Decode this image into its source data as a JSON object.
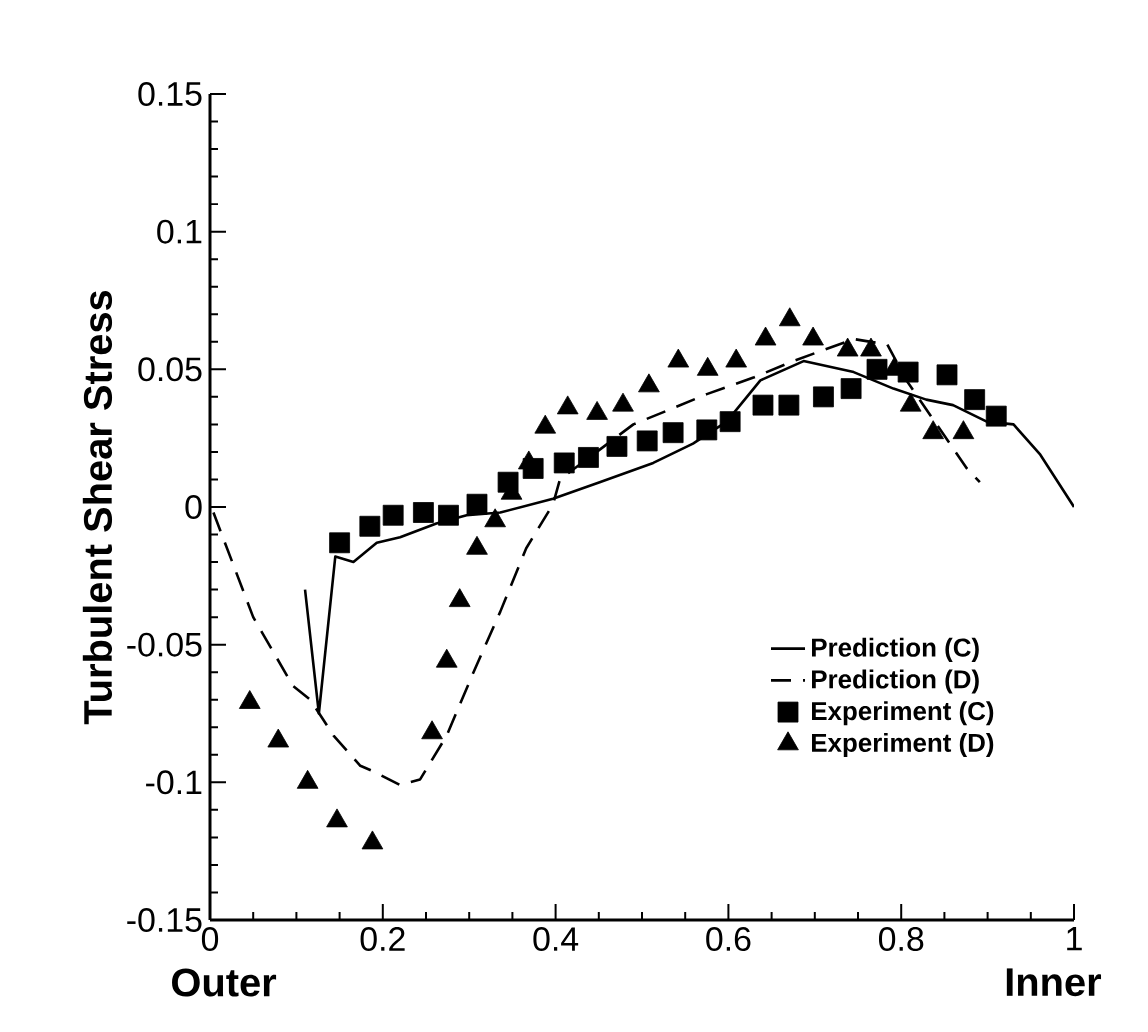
{
  "chart_data": {
    "type": "line",
    "ylabel": "Turbulent Shear Stress",
    "annotations": [
      "Outer",
      "Inner"
    ],
    "xlim": [
      0,
      1
    ],
    "xticks": [
      0,
      0.2,
      0.4,
      0.6,
      0.8,
      1
    ],
    "ylim": [
      -0.15,
      0.15
    ],
    "yticks": [
      -0.15,
      -0.1,
      -0.05,
      0,
      0.05,
      0.1,
      0.15
    ],
    "grid": false,
    "legend": "bottom right",
    "series": [
      {
        "name": "Prediction (C)",
        "line_style": "solid",
        "color": "#000000",
        "x": [
          0.11,
          0.126,
          0.145,
          0.166,
          0.193,
          0.22,
          0.262,
          0.297,
          0.336,
          0.397,
          0.451,
          0.513,
          0.559,
          0.598,
          0.637,
          0.687,
          0.745,
          0.791,
          0.829,
          0.86,
          0.899,
          0.93,
          0.961,
          1.0
        ],
        "values": [
          -0.03,
          -0.075,
          -0.018,
          -0.02,
          -0.013,
          -0.011,
          -0.006,
          -0.003,
          -0.002,
          0.003,
          0.009,
          0.016,
          0.023,
          0.031,
          0.046,
          0.053,
          0.049,
          0.043,
          0.039,
          0.037,
          0.031,
          0.03,
          0.019,
          0.0
        ]
      },
      {
        "name": "Prediction (D)",
        "line_style": "dashed",
        "color": "#000000",
        "x": [
          0.004,
          0.05,
          0.096,
          0.116,
          0.143,
          0.174,
          0.189,
          0.22,
          0.243,
          0.274,
          0.305,
          0.336,
          0.366,
          0.397,
          0.405,
          0.49,
          0.529,
          0.575,
          0.629,
          0.675,
          0.745,
          0.784,
          0.806,
          0.876,
          0.891
        ],
        "values": [
          -0.002,
          -0.04,
          -0.065,
          -0.07,
          -0.083,
          -0.094,
          -0.096,
          -0.101,
          -0.099,
          -0.083,
          -0.06,
          -0.038,
          -0.015,
          0.001,
          0.01,
          0.03,
          0.035,
          0.041,
          0.047,
          0.053,
          0.061,
          0.059,
          0.046,
          0.014,
          0.009
        ]
      },
      {
        "name": "Experiment (C)",
        "type": "scatter",
        "marker": "square",
        "color": "#000000",
        "x": [
          0.15,
          0.185,
          0.212,
          0.247,
          0.276,
          0.309,
          0.345,
          0.374,
          0.41,
          0.438,
          0.471,
          0.506,
          0.536,
          0.575,
          0.602,
          0.64,
          0.67,
          0.71,
          0.742,
          0.772,
          0.808,
          0.853,
          0.885,
          0.91
        ],
        "values": [
          -0.013,
          -0.007,
          -0.003,
          -0.002,
          -0.003,
          0.001,
          0.009,
          0.014,
          0.016,
          0.018,
          0.022,
          0.024,
          0.027,
          0.028,
          0.031,
          0.037,
          0.037,
          0.04,
          0.043,
          0.05,
          0.049,
          0.048,
          0.039,
          0.033
        ]
      },
      {
        "name": "Experiment (D)",
        "type": "scatter",
        "marker": "triangle",
        "color": "#000000",
        "x": [
          0.046,
          0.079,
          0.113,
          0.147,
          0.188,
          0.257,
          0.274,
          0.289,
          0.309,
          0.33,
          0.349,
          0.369,
          0.388,
          0.414,
          0.448,
          0.478,
          0.508,
          0.542,
          0.576,
          0.609,
          0.643,
          0.671,
          0.698,
          0.738,
          0.765,
          0.792,
          0.811,
          0.837,
          0.872
        ],
        "values": [
          -0.071,
          -0.085,
          -0.1,
          -0.114,
          -0.122,
          -0.082,
          -0.056,
          -0.034,
          -0.015,
          -0.005,
          0.005,
          0.016,
          0.029,
          0.036,
          0.034,
          0.037,
          0.044,
          0.053,
          0.05,
          0.053,
          0.061,
          0.068,
          0.061,
          0.057,
          0.057,
          0.05,
          0.037,
          0.027,
          0.027
        ]
      }
    ]
  }
}
